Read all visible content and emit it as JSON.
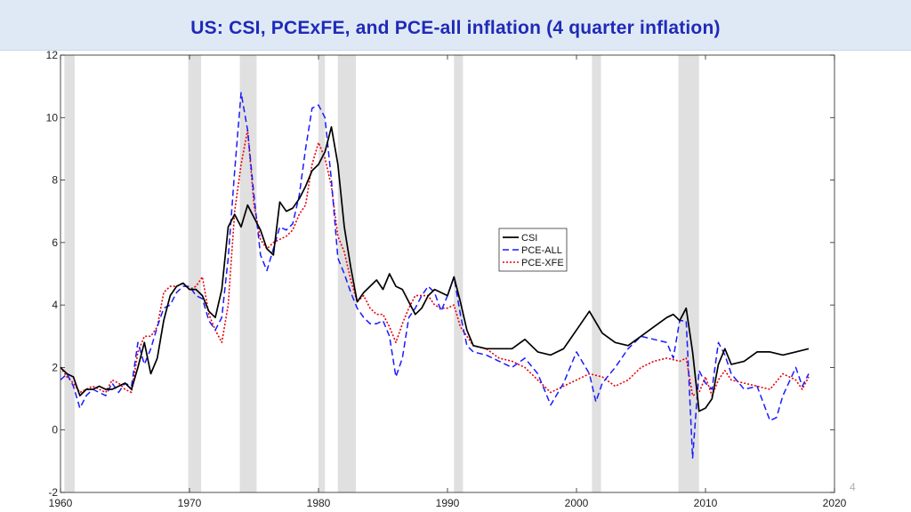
{
  "title": "US: CSI,  PCExFE, and PCE-all inflation (4 quarter inflation)",
  "page_number": "4",
  "colors": {
    "header_bg": "#dfe9f5",
    "title": "#1f2ab8",
    "csi": "#000000",
    "pce_all": "#1a1aff",
    "pce_xfe": "#e8000b",
    "recession": "#e0e0e0"
  },
  "chart_data": {
    "type": "line",
    "title": "",
    "xlabel": "",
    "ylabel": "",
    "xlim": [
      1960,
      2020
    ],
    "ylim": [
      -2,
      12
    ],
    "xticks": [
      1960,
      1970,
      1980,
      1990,
      2000,
      2010,
      2020
    ],
    "yticks": [
      -2,
      0,
      2,
      4,
      6,
      8,
      10,
      12
    ],
    "grid": false,
    "legend_position": "center-right",
    "recessions": [
      [
        1960.3,
        1961.1
      ],
      [
        1969.9,
        1970.9
      ],
      [
        1973.9,
        1975.2
      ],
      [
        1980.0,
        1980.5
      ],
      [
        1981.5,
        1982.9
      ],
      [
        1990.5,
        1991.2
      ],
      [
        2001.2,
        2001.9
      ],
      [
        2007.9,
        2009.5
      ]
    ],
    "series": [
      {
        "name": "CSI",
        "style": "solid",
        "x": [
          1960,
          1960.5,
          1961,
          1961.5,
          1962,
          1962.5,
          1963,
          1963.5,
          1964,
          1964.5,
          1965,
          1965.5,
          1966,
          1966.5,
          1967,
          1967.5,
          1968,
          1968.5,
          1969,
          1969.5,
          1970,
          1970.5,
          1971,
          1971.5,
          1972,
          1972.5,
          1973,
          1973.5,
          1974,
          1974.5,
          1975,
          1975.5,
          1976,
          1976.5,
          1977,
          1977.5,
          1978,
          1978.5,
          1979,
          1979.5,
          1980,
          1980.5,
          1981,
          1981.5,
          1982,
          1982.5,
          1983,
          1983.5,
          1984,
          1984.5,
          1985,
          1985.5,
          1986,
          1986.5,
          1987,
          1987.5,
          1988,
          1988.5,
          1989,
          1989.5,
          1990,
          1990.5,
          1991,
          1991.5,
          1992,
          1993,
          1994,
          1995,
          1996,
          1997,
          1998,
          1999,
          2000,
          2001,
          2002,
          2003,
          2004,
          2005,
          2006,
          2007,
          2007.5,
          2008,
          2008.5,
          2009,
          2009.5,
          2010,
          2010.5,
          2011,
          2011.5,
          2012,
          2013,
          2014,
          2015,
          2016,
          2017,
          2018
        ],
        "y": [
          2.0,
          1.8,
          1.7,
          1.1,
          1.3,
          1.3,
          1.4,
          1.3,
          1.3,
          1.4,
          1.5,
          1.3,
          2.0,
          2.8,
          1.8,
          2.3,
          3.5,
          4.3,
          4.6,
          4.7,
          4.5,
          4.5,
          4.3,
          3.8,
          3.6,
          4.5,
          6.5,
          6.9,
          6.5,
          7.2,
          6.8,
          6.4,
          5.8,
          5.6,
          7.3,
          7.0,
          7.1,
          7.4,
          7.8,
          8.3,
          8.5,
          8.9,
          9.7,
          8.5,
          6.5,
          5.2,
          4.1,
          4.4,
          4.6,
          4.8,
          4.5,
          5.0,
          4.6,
          4.5,
          4.1,
          3.7,
          3.9,
          4.3,
          4.5,
          4.4,
          4.3,
          4.9,
          4.1,
          3.2,
          2.7,
          2.6,
          2.6,
          2.6,
          2.9,
          2.5,
          2.4,
          2.6,
          3.2,
          3.8,
          3.1,
          2.8,
          2.7,
          3.0,
          3.3,
          3.6,
          3.7,
          3.5,
          3.9,
          2.5,
          0.6,
          0.7,
          1.0,
          2.1,
          2.6,
          2.1,
          2.2,
          2.5,
          2.5,
          2.4,
          2.5,
          2.6
        ]
      },
      {
        "name": "PCE-ALL",
        "style": "dashed",
        "x": [
          1960,
          1960.5,
          1961,
          1961.5,
          1962,
          1962.5,
          1963,
          1963.5,
          1964,
          1964.5,
          1965,
          1965.5,
          1966,
          1966.5,
          1967,
          1967.5,
          1968,
          1968.5,
          1969,
          1969.5,
          1970,
          1970.5,
          1971,
          1971.5,
          1972,
          1972.5,
          1973,
          1973.5,
          1974,
          1974.5,
          1975,
          1975.5,
          1976,
          1976.5,
          1977,
          1977.5,
          1978,
          1978.5,
          1979,
          1979.5,
          1980,
          1980.5,
          1981,
          1981.5,
          1982,
          1982.5,
          1983,
          1983.5,
          1984,
          1984.5,
          1985,
          1985.5,
          1986,
          1986.5,
          1987,
          1987.5,
          1988,
          1988.5,
          1989,
          1989.5,
          1990,
          1990.5,
          1991,
          1991.5,
          1992,
          1993,
          1994,
          1995,
          1996,
          1997,
          1998,
          1999,
          2000,
          2001,
          2001.5,
          2002,
          2003,
          2004,
          2005,
          2006,
          2007,
          2007.5,
          2008,
          2008.5,
          2009,
          2009.5,
          2010,
          2010.5,
          2011,
          2011.5,
          2012,
          2013,
          2014,
          2015,
          2015.5,
          2016,
          2017,
          2017.5,
          2018
        ],
        "y": [
          1.6,
          1.8,
          1.4,
          0.7,
          1.1,
          1.3,
          1.2,
          1.1,
          1.5,
          1.2,
          1.5,
          1.4,
          2.8,
          2.1,
          2.6,
          3.3,
          3.9,
          4.0,
          4.4,
          4.6,
          4.6,
          4.3,
          4.2,
          3.5,
          3.2,
          3.6,
          5.5,
          8.3,
          10.8,
          9.6,
          7.5,
          5.6,
          5.1,
          5.8,
          6.5,
          6.4,
          6.6,
          7.5,
          9.0,
          10.3,
          10.4,
          10.0,
          8.0,
          5.5,
          5.0,
          4.4,
          3.9,
          3.6,
          3.4,
          3.4,
          3.5,
          3.0,
          1.7,
          2.3,
          3.6,
          3.9,
          4.3,
          4.6,
          4.4,
          3.8,
          4.3,
          4.9,
          3.7,
          2.7,
          2.5,
          2.4,
          2.2,
          2.0,
          2.3,
          1.8,
          0.8,
          1.5,
          2.5,
          1.8,
          0.9,
          1.5,
          2.0,
          2.6,
          3.0,
          2.9,
          2.8,
          2.3,
          3.5,
          3.5,
          -0.9,
          1.9,
          1.5,
          1.3,
          2.8,
          2.4,
          1.8,
          1.3,
          1.4,
          0.3,
          0.4,
          1.1,
          2.0,
          1.4,
          1.8
        ]
      },
      {
        "name": "PCE-XFE",
        "style": "dotted",
        "x": [
          1960,
          1960.5,
          1961,
          1961.5,
          1962,
          1962.5,
          1963,
          1963.5,
          1964,
          1964.5,
          1965,
          1965.5,
          1966,
          1966.5,
          1967,
          1967.5,
          1968,
          1968.5,
          1969,
          1969.5,
          1970,
          1970.5,
          1971,
          1971.5,
          1972,
          1972.5,
          1973,
          1973.5,
          1974,
          1974.5,
          1975,
          1975.5,
          1976,
          1976.5,
          1977,
          1977.5,
          1978,
          1978.5,
          1979,
          1979.5,
          1980,
          1980.5,
          1981,
          1981.5,
          1982,
          1982.5,
          1983,
          1983.5,
          1984,
          1984.5,
          1985,
          1985.5,
          1986,
          1986.5,
          1987,
          1987.5,
          1988,
          1988.5,
          1989,
          1989.5,
          1990,
          1990.5,
          1991,
          1991.5,
          1992,
          1993,
          1994,
          1995,
          1996,
          1997,
          1998,
          1999,
          2000,
          2001,
          2002,
          2003,
          2004,
          2005,
          2006,
          2007,
          2008,
          2008.5,
          2009,
          2009.5,
          2010,
          2010.5,
          2011,
          2011.5,
          2012,
          2013,
          2014,
          2015,
          2016,
          2017,
          2017.5,
          2018
        ],
        "y": [
          2.0,
          1.7,
          1.5,
          1.2,
          1.3,
          1.4,
          1.3,
          1.2,
          1.6,
          1.5,
          1.3,
          1.2,
          2.5,
          3.0,
          3.0,
          3.3,
          4.4,
          4.6,
          4.6,
          4.7,
          4.5,
          4.6,
          4.9,
          3.7,
          3.2,
          2.8,
          4.0,
          7.0,
          8.5,
          9.6,
          7.2,
          6.1,
          5.8,
          6.0,
          6.1,
          6.2,
          6.4,
          6.9,
          7.2,
          8.5,
          9.2,
          8.7,
          7.8,
          6.2,
          5.7,
          4.8,
          4.1,
          4.3,
          3.9,
          3.7,
          3.7,
          3.3,
          2.8,
          3.4,
          3.9,
          4.3,
          4.3,
          4.3,
          4.0,
          3.9,
          3.9,
          4.0,
          3.3,
          3.0,
          2.7,
          2.6,
          2.3,
          2.2,
          2.0,
          1.6,
          1.2,
          1.4,
          1.6,
          1.8,
          1.7,
          1.4,
          1.6,
          2.0,
          2.2,
          2.3,
          2.2,
          2.3,
          1.1,
          1.2,
          1.7,
          1.1,
          1.6,
          1.9,
          1.6,
          1.5,
          1.4,
          1.3,
          1.8,
          1.6,
          1.3,
          1.7
        ]
      }
    ]
  }
}
